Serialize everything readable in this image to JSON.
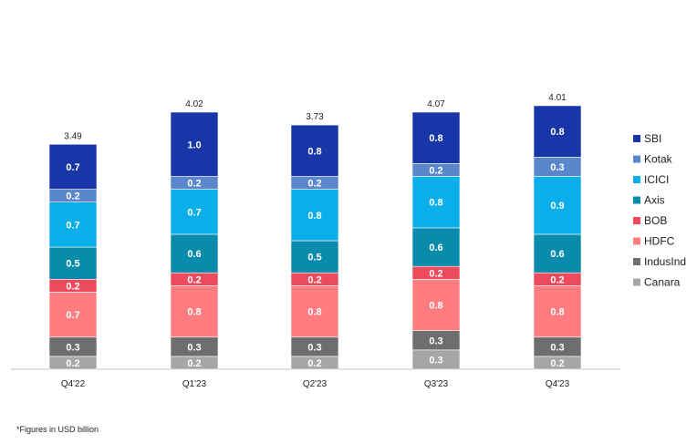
{
  "chart_data": {
    "type": "bar",
    "stacked": true,
    "categories": [
      "Q4'22",
      "Q1'23",
      "Q2'23",
      "Q3'23",
      "Q4'23"
    ],
    "totals": [
      "3.49",
      "4.02",
      "3.73",
      "4.07",
      "4.01"
    ],
    "series": [
      {
        "name": "Canara",
        "color": "#a6a6a6",
        "values": [
          0.2,
          0.2,
          0.2,
          0.3,
          0.2
        ]
      },
      {
        "name": "IndusInd",
        "color": "#6e6e6e",
        "values": [
          0.3,
          0.3,
          0.3,
          0.3,
          0.3
        ]
      },
      {
        "name": "HDFC",
        "color": "#ff7c80",
        "values": [
          0.7,
          0.8,
          0.8,
          0.8,
          0.8
        ]
      },
      {
        "name": "BOB",
        "color": "#ee4a5e",
        "values": [
          0.2,
          0.2,
          0.2,
          0.2,
          0.2
        ]
      },
      {
        "name": "Axis",
        "color": "#0b8bab",
        "values": [
          0.5,
          0.6,
          0.5,
          0.6,
          0.6
        ]
      },
      {
        "name": "ICICI",
        "color": "#0aaee8",
        "values": [
          0.7,
          0.7,
          0.8,
          0.8,
          0.9
        ]
      },
      {
        "name": "Kotak",
        "color": "#5a86cc",
        "values": [
          0.2,
          0.2,
          0.2,
          0.2,
          0.3
        ]
      },
      {
        "name": "SBI",
        "color": "#1836a8",
        "values": [
          0.7,
          1.0,
          0.8,
          0.8,
          0.8
        ]
      }
    ],
    "legend_placement": "right",
    "grid": false
  },
  "footnote": "*Figures in USD billion"
}
